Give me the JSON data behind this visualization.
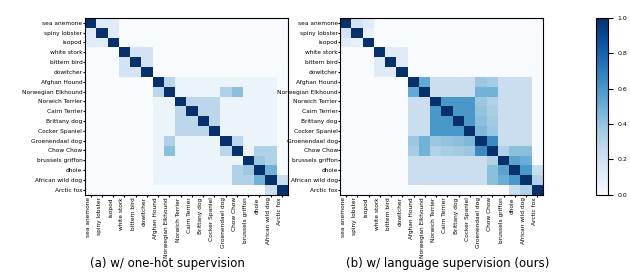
{
  "labels": [
    "sea anemone",
    "spiny lobster",
    "isopod",
    "white stork",
    "bittern bird",
    "dowitcher",
    "Afghan Hound",
    "Norwegian Elkhound",
    "Norwich Terrier",
    "Cairn Terrier",
    "Brittany dog",
    "Cocker Spaniel",
    "Groenendael dog",
    "Chow Chow",
    "brussels griffon",
    "dhole",
    "African wild dog",
    "Arctic fox"
  ],
  "title_a": "(a) w/ one-hot supervision",
  "title_b": "(b) w/ language supervision (ours)",
  "cmap": "Blues",
  "vmin": 0.0,
  "vmax": 1.0,
  "figsize": [
    6.3,
    2.76
  ],
  "dpi": 100,
  "label_fontsize": 4.2,
  "title_fontsize": 8.5,
  "cb_fontsize": 4.5
}
